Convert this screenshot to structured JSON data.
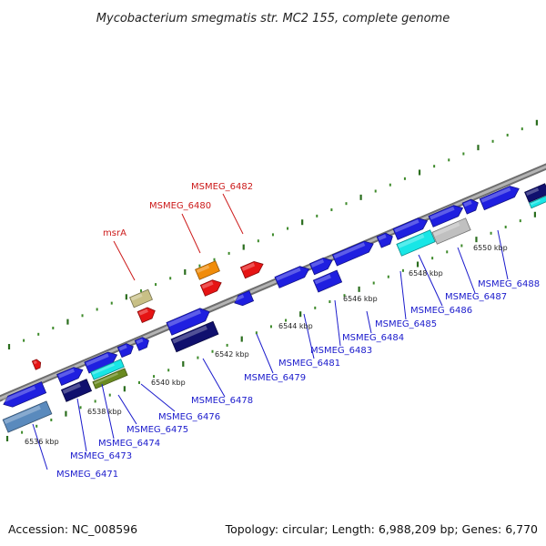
{
  "title": "Mycobacterium smegmatis str. MC2 155, complete genome",
  "accession": "Accession: NC_008596",
  "topology": "Topology: circular; Length: 6,988,209 bp; Genes: 6,770",
  "colors": {
    "backbone": "#8c8c8c",
    "tick_major": "#2b6e1e",
    "tick_minor": "#3d8a2a",
    "label_blue": "#1a1acc",
    "label_red": "#cc1a1a",
    "gene_blue": "#1f1fe0",
    "gene_navy": "#10106e",
    "gene_red": "#e61414",
    "gene_orange": "#f08c0a",
    "gene_khaki": "#c8c086",
    "gene_cyan": "#18e6e6",
    "gene_gray": "#c0c0c0",
    "gene_steel": "#5a8abd",
    "gene_olive": "#6a8a20"
  },
  "scale_labels": [
    "6536 kbp",
    "6538 kbp",
    "6540 kbp",
    "6542 kbp",
    "6544 kbp",
    "6546 kbp",
    "6548 kbp",
    "6550 kbp"
  ],
  "gene_labels": [
    {
      "text": "MSMEG_6471",
      "color": "label_blue"
    },
    {
      "text": "MSMEG_6473",
      "color": "label_blue"
    },
    {
      "text": "MSMEG_6474",
      "color": "label_blue"
    },
    {
      "text": "MSMEG_6475",
      "color": "label_blue"
    },
    {
      "text": "MSMEG_6476",
      "color": "label_blue"
    },
    {
      "text": "MSMEG_6478",
      "color": "label_blue"
    },
    {
      "text": "MSMEG_6479",
      "color": "label_blue"
    },
    {
      "text": "MSMEG_6481",
      "color": "label_blue"
    },
    {
      "text": "MSMEG_6483",
      "color": "label_blue"
    },
    {
      "text": "MSMEG_6484",
      "color": "label_blue"
    },
    {
      "text": "MSMEG_6485",
      "color": "label_blue"
    },
    {
      "text": "MSMEG_6486",
      "color": "label_blue"
    },
    {
      "text": "MSMEG_6487",
      "color": "label_blue"
    },
    {
      "text": "MSMEG_6488",
      "color": "label_blue"
    },
    {
      "text": "msrA",
      "color": "label_red"
    },
    {
      "text": "MSMEG_6480",
      "color": "label_red"
    },
    {
      "text": "MSMEG_6482",
      "color": "label_red"
    }
  ]
}
